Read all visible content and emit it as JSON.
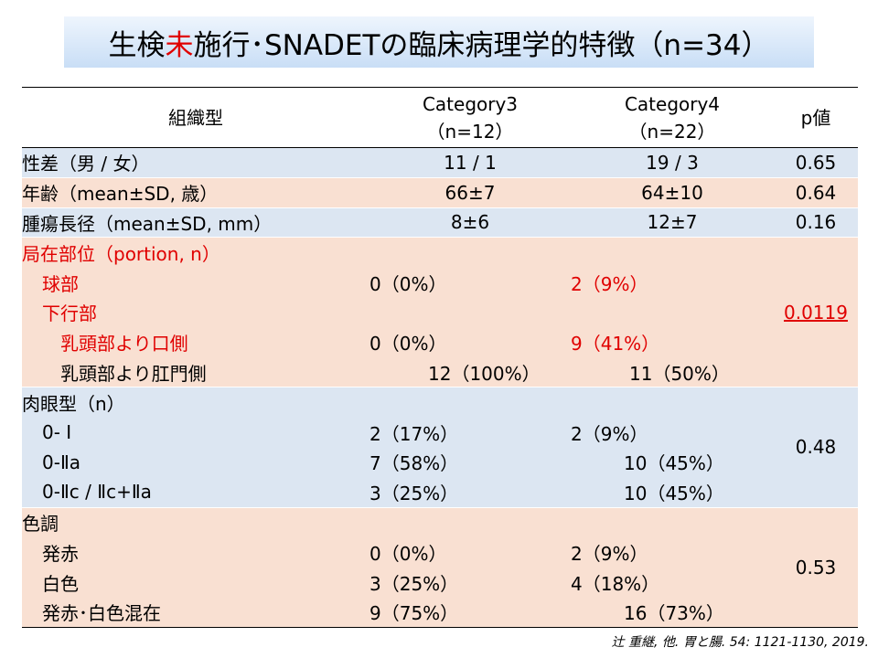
{
  "title": {
    "prefix": "生検",
    "highlight": "未",
    "suffix": "施行･SNADETの臨床病理学的特徴（n=34）"
  },
  "header": {
    "col1": "組織型",
    "col2_line1": "Category3",
    "col2_line2": "（n=12）",
    "col3_line1": "Category4",
    "col3_line2": "（n=22）",
    "col4": "p値"
  },
  "rows": {
    "sex": {
      "label": "性差（男 / 女）",
      "cat3": "11 / 1",
      "cat4": "19 / 3",
      "p": "0.65"
    },
    "age": {
      "label": "年齢（mean±SD, 歳）",
      "cat3": "66±7",
      "cat4": "64±10",
      "p": "0.64"
    },
    "size": {
      "label": "腫瘍長径（mean±SD, mm）",
      "cat3": "8±6",
      "cat4": "12±7",
      "p": "0.16"
    },
    "location": {
      "label": "局在部位（portion, n）",
      "p": "0.0119",
      "bulb": {
        "label": "球部",
        "cat3": "0（0%）",
        "cat4": "2（9%）"
      },
      "descending": {
        "label": "下行部"
      },
      "oral": {
        "label": "乳頭部より口側",
        "cat3": "0（0%）",
        "cat4": "9（41%）"
      },
      "anal": {
        "label": "乳頭部より肛門側",
        "cat3": "12（100%）",
        "cat4": "11（50%）"
      }
    },
    "macro": {
      "label": "肉眼型（n）",
      "p": "0.48",
      "t1": {
        "label": "0- Ⅰ",
        "cat3": "2（17%）",
        "cat4": "2（9%）"
      },
      "t2": {
        "label": "0-Ⅱa",
        "cat3": "7（58%）",
        "cat4": "10（45%）"
      },
      "t3": {
        "label": "0-Ⅱc / Ⅱc+Ⅱa",
        "cat3": "3（25%）",
        "cat4": "10（45%）"
      }
    },
    "color": {
      "label": "色調",
      "p": "0.53",
      "red": {
        "label": "発赤",
        "cat3": "0（0%）",
        "cat4": "2（9%）"
      },
      "white": {
        "label": "白色",
        "cat3": "3（25%）",
        "cat4": "4（18%）"
      },
      "mixed": {
        "label": "発赤･白色混在",
        "cat3": "9（75%）",
        "cat4": "16（73%）"
      }
    }
  },
  "citation": "辻 重継, 他. 胃と腸. 54: 1121-1130, 2019.",
  "colors": {
    "highlight": "#e00000",
    "row_blue": "#dce6f2",
    "row_pink": "#f9e0d2",
    "title_bg": "#c9def6"
  }
}
